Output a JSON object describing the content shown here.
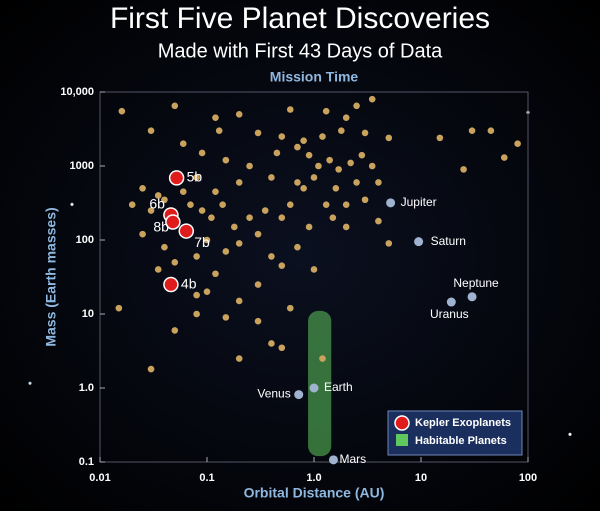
{
  "chart_data": {
    "type": "scatter",
    "title": "First Five Planet Discoveries",
    "subtitle": "Made with First 43 Days of Data",
    "top_label": "Mission Time",
    "x_label": "Orbital Distance (AU)",
    "y_label": "Mass (Earth masses)",
    "log_x": true,
    "log_y": true,
    "xlim": [
      0.01,
      100
    ],
    "ylim": [
      0.1,
      10000
    ],
    "xticks": [
      0.01,
      0.1,
      {
        "value": 1,
        "label": "1.0"
      },
      10,
      100
    ],
    "yticks": [
      0.1,
      {
        "value": 1,
        "label": "1.0"
      },
      10,
      100,
      1000,
      {
        "value": 10000,
        "label": "10,000"
      }
    ],
    "series": [
      {
        "color": "#c9a25e",
        "x": [
          0.016,
          0.05,
          0.12,
          0.2,
          0.6,
          1.3,
          2.5,
          3.5,
          2.0,
          30,
          45,
          80,
          60,
          25,
          15,
          5,
          3,
          1.8,
          1.2,
          0.8,
          0.5,
          0.3,
          0.13,
          0.03,
          0.06,
          0.09,
          0.15,
          0.25,
          0.45,
          0.7,
          0.9,
          1.1,
          1.4,
          1.7,
          2.2,
          2.8,
          3.5,
          4,
          2.5,
          1.6,
          1.0,
          0.8,
          1.3,
          2.0,
          3.0,
          0.6,
          0.4,
          0.2,
          0.12,
          0.08,
          0.035,
          0.025,
          0.02,
          0.03,
          0.04,
          0.06,
          0.07,
          0.09,
          0.11,
          0.14,
          0.18,
          0.25,
          0.35,
          0.5,
          0.3,
          0.2,
          0.15,
          0.1,
          0.08,
          0.05,
          0.035,
          0.04,
          0.025,
          0.06,
          0.12,
          0.1,
          0.2,
          0.3,
          0.4,
          0.5,
          0.7,
          1.0,
          0.6,
          0.3,
          0.15,
          0.08,
          0.05,
          0.4,
          0.5,
          1.2,
          0.2,
          0.03,
          0.015,
          0.08,
          5,
          2,
          4,
          1.5,
          0.9,
          0.7
        ],
        "values": [
          5500,
          6500,
          4500,
          5000,
          5800,
          5500,
          6500,
          8000,
          4500,
          3000,
          3000,
          2000,
          1300,
          900,
          2400,
          2400,
          2800,
          3000,
          2500,
          2200,
          2500,
          2800,
          3000,
          3000,
          2000,
          1500,
          1200,
          1000,
          1500,
          1800,
          1400,
          1000,
          1200,
          900,
          1100,
          1400,
          1000,
          600,
          600,
          500,
          700,
          500,
          300,
          300,
          350,
          300,
          700,
          600,
          450,
          700,
          400,
          500,
          300,
          250,
          350,
          450,
          300,
          250,
          200,
          300,
          150,
          200,
          250,
          200,
          120,
          90,
          70,
          100,
          60,
          50,
          40,
          80,
          120,
          130,
          35,
          20,
          15,
          25,
          60,
          45,
          80,
          40,
          12,
          8,
          9,
          10,
          6,
          4,
          3.5,
          2.5,
          2.5,
          1.8,
          12,
          18,
          90,
          150,
          180,
          200,
          150,
          600
        ]
      },
      {
        "name": "Kepler Exoplanets",
        "color": "#e01b1b",
        "x": [
          0.052,
          0.046,
          0.048,
          0.064,
          0.046
        ],
        "values": [
          690,
          218,
          175,
          132,
          25
        ],
        "point_labels": [
          "5b",
          "6b",
          "8b",
          "7b",
          "4b"
        ]
      },
      {
        "color": "#9fb3cf",
        "x": [
          0.72,
          1.0,
          1.52,
          5.2,
          9.5,
          19.2,
          30
        ],
        "values": [
          0.815,
          1.0,
          0.107,
          318,
          95,
          14.5,
          17.1
        ],
        "point_labels": [
          "Venus",
          "Earth",
          "Mars",
          "Jupiter",
          "Saturn",
          "Uranus",
          "Neptune"
        ]
      }
    ],
    "habitable_zone": {
      "name": "Habitable Planets",
      "color": "#5fc85f",
      "xlim": [
        0.88,
        1.45
      ],
      "ylim": [
        0.12,
        11
      ]
    }
  }
}
